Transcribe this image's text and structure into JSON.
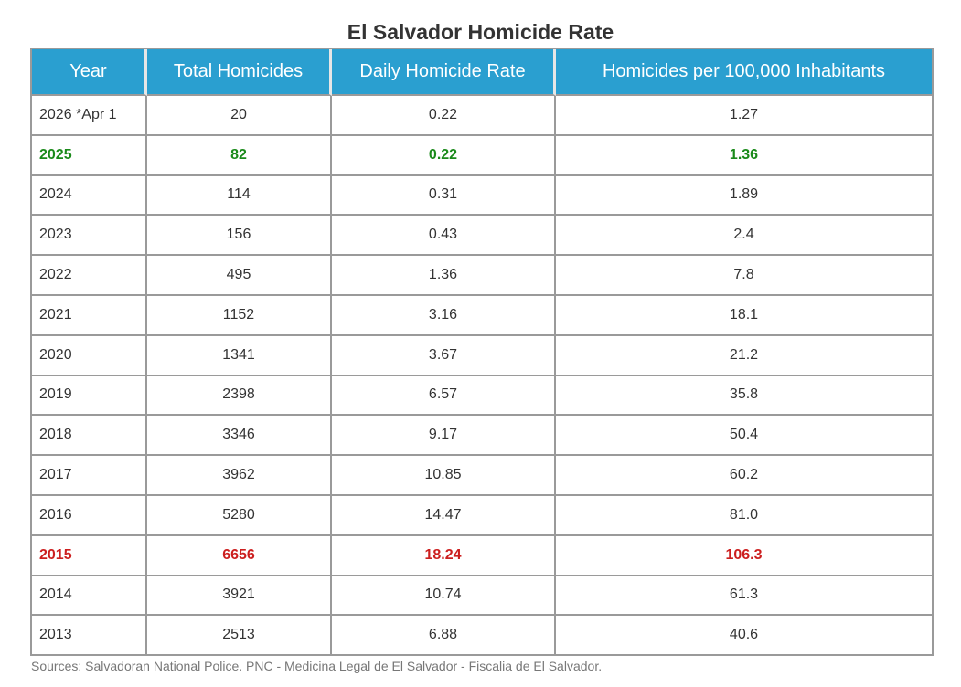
{
  "chart_data": {
    "type": "table",
    "title": "El Salvador Homicide Rate",
    "columns": [
      "Year",
      "Total Homicides",
      "Daily Homicide Rate",
      "Homicides per 100,000 Inhabitants"
    ],
    "rows": [
      {
        "year": "2026 *Apr 1",
        "total": "20",
        "daily": "0.22",
        "per100k": "1.27",
        "highlight": ""
      },
      {
        "year": "2025",
        "total": "82",
        "daily": "0.22",
        "per100k": "1.36",
        "highlight": "green"
      },
      {
        "year": "2024",
        "total": "114",
        "daily": "0.31",
        "per100k": "1.89",
        "highlight": ""
      },
      {
        "year": "2023",
        "total": "156",
        "daily": "0.43",
        "per100k": "2.4",
        "highlight": ""
      },
      {
        "year": "2022",
        "total": "495",
        "daily": "1.36",
        "per100k": "7.8",
        "highlight": ""
      },
      {
        "year": "2021",
        "total": "1152",
        "daily": "3.16",
        "per100k": "18.1",
        "highlight": ""
      },
      {
        "year": "2020",
        "total": "1341",
        "daily": "3.67",
        "per100k": "21.2",
        "highlight": ""
      },
      {
        "year": "2019",
        "total": "2398",
        "daily": "6.57",
        "per100k": "35.8",
        "highlight": ""
      },
      {
        "year": "2018",
        "total": "3346",
        "daily": "9.17",
        "per100k": "50.4",
        "highlight": ""
      },
      {
        "year": "2017",
        "total": "3962",
        "daily": "10.85",
        "per100k": "60.2",
        "highlight": ""
      },
      {
        "year": "2016",
        "total": "5280",
        "daily": "14.47",
        "per100k": "81.0",
        "highlight": ""
      },
      {
        "year": "2015",
        "total": "6656",
        "daily": "18.24",
        "per100k": "106.3",
        "highlight": "red"
      },
      {
        "year": "2014",
        "total": "3921",
        "daily": "10.74",
        "per100k": "61.3",
        "highlight": ""
      },
      {
        "year": "2013",
        "total": "2513",
        "daily": "6.88",
        "per100k": "40.6",
        "highlight": ""
      }
    ],
    "source": "Sources: Salvadoran National Police. PNC - Medicina Legal de El Salvador - Fiscalia de El Salvador."
  },
  "colors": {
    "header_bg": "#2a9fd0",
    "header_text": "#ffffff",
    "border": "#9a9a9a",
    "green_highlight": "#1a8a1a",
    "red_highlight": "#cc1f1f",
    "text": "#333333",
    "source_text": "#777777"
  }
}
